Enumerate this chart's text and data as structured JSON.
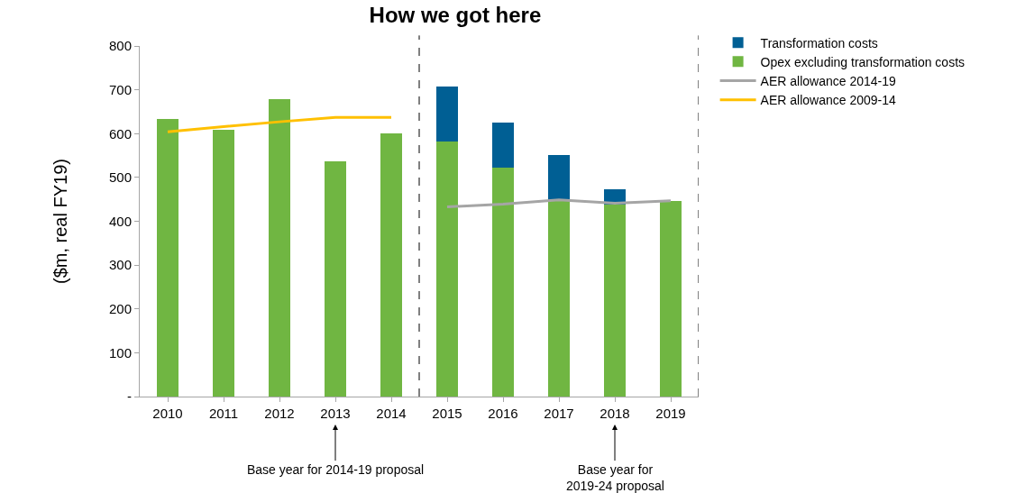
{
  "chart_data": {
    "type": "bar",
    "stacked": true,
    "title": "How we got here",
    "ylabel": "($m, real FY19)",
    "x": [
      2010,
      2011,
      2012,
      2013,
      2014,
      2015,
      2016,
      2017,
      2018,
      2019
    ],
    "xlim": [
      2009.5,
      2019.5
    ],
    "xticks": [
      2010,
      2011,
      2012,
      2013,
      2014,
      2015,
      2016,
      2017,
      2018,
      2019
    ],
    "ylim": [
      0,
      800
    ],
    "yticks": [
      {
        "value": 0,
        "label": "-"
      },
      100,
      200,
      300,
      400,
      500,
      600,
      700,
      800
    ],
    "series": [
      {
        "name": "Opex excluding transformation costs",
        "color": "#70b642",
        "values": [
          633,
          609,
          679,
          536,
          600,
          581,
          523,
          447,
          439,
          447
        ]
      },
      {
        "name": "Transformation costs",
        "color": "#005f94",
        "values": [
          null,
          null,
          null,
          null,
          null,
          126,
          103,
          105,
          35,
          null
        ]
      },
      {
        "name": "AER allowance 2014-19",
        "type": "line",
        "color": "#a5a5a5",
        "x": [
          2015,
          2016,
          2017,
          2018,
          2019
        ],
        "values": [
          433,
          439,
          449,
          441,
          447
        ]
      },
      {
        "name": "AER allowance 2009-14",
        "type": "line",
        "color": "#ffc000",
        "x": [
          2010,
          2011,
          2012,
          2013,
          2014
        ],
        "values": [
          604,
          616,
          627,
          637,
          637
        ]
      }
    ],
    "ref_lines": [
      {
        "axis": "x",
        "value": 2014.5,
        "color": "#000000",
        "line_style": "dashed"
      },
      {
        "axis": "x",
        "value": 2019.5,
        "color": "#000000",
        "line_style": "dashed"
      }
    ],
    "annotations": [
      {
        "text": "Base year for 2014-19 proposal",
        "x": 2013
      },
      {
        "text": "Base year for\n2019-24 proposal",
        "x": 2018
      }
    ],
    "legend": "top right",
    "marker": "none"
  }
}
